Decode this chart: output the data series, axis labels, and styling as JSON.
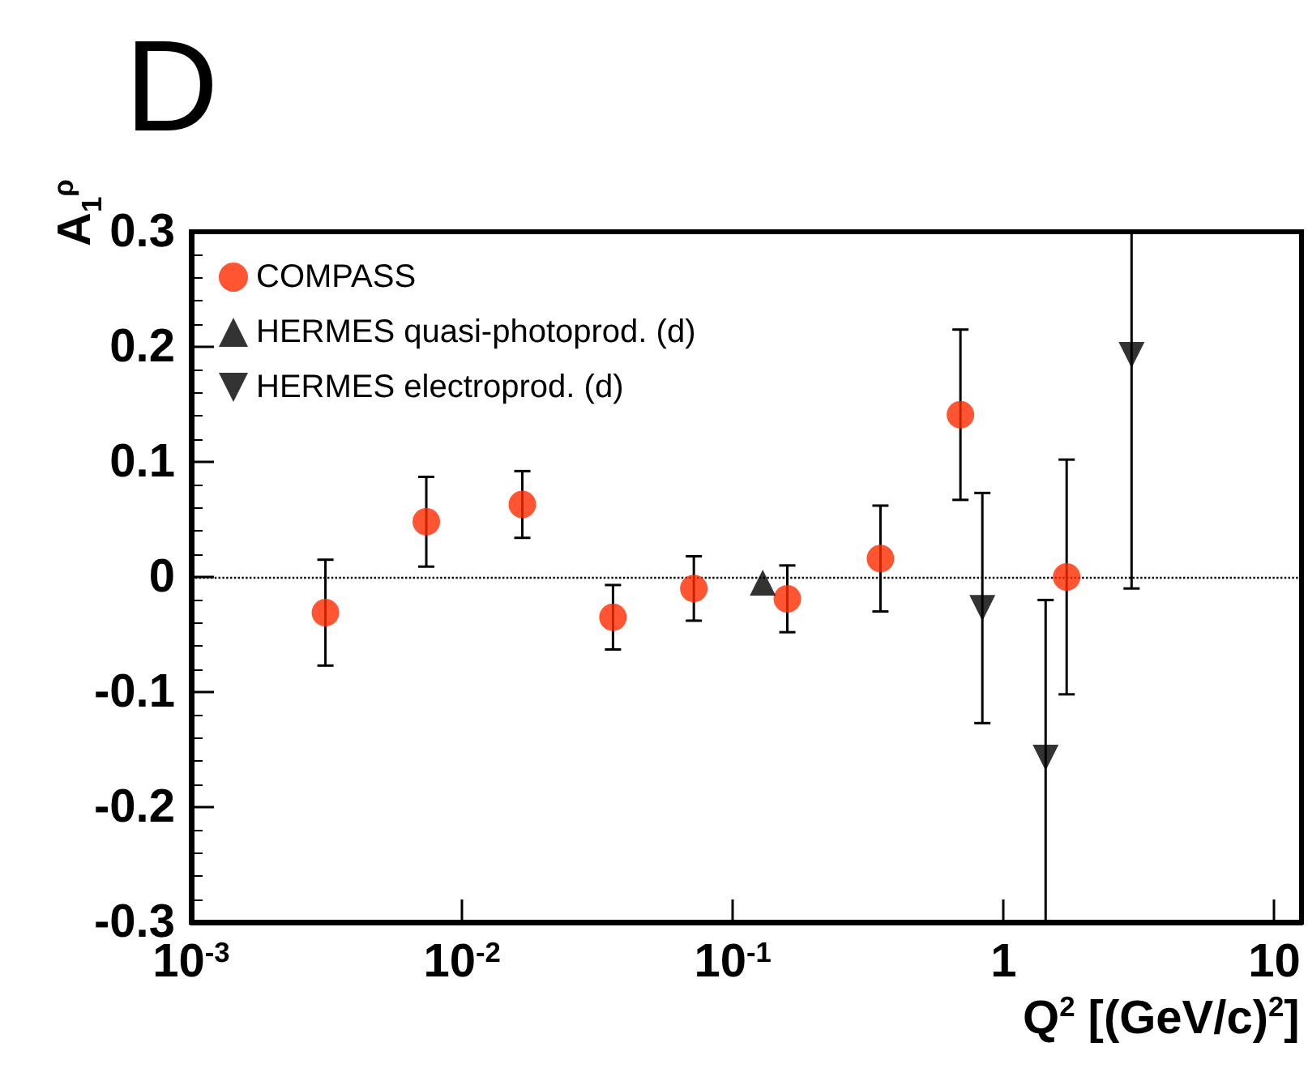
{
  "chart_data": {
    "type": "scatter",
    "title": "D",
    "xlabel": "Q$^{2}$ [(GeV/c)$^{2}$]",
    "ylabel": "A$_{1}$$^{ρ}$",
    "log": "x",
    "grid": false,
    "legend": "top left",
    "xlim": [
      0.001,
      12.6
    ],
    "xticks": [
      {
        "value": 0.001,
        "label": "10$^{-3}$"
      },
      {
        "value": 0.01,
        "label": "10$^{-2}$"
      },
      {
        "value": 0.1,
        "label": "10$^{-1}$"
      },
      1,
      10
    ],
    "ylim": [
      -0.3,
      0.3
    ],
    "yticks": [
      -0.3,
      -0.2,
      -0.1,
      0,
      0.1,
      0.2,
      0.3
    ],
    "ref_lines": [
      {
        "axis": "y",
        "value": 0,
        "line_style": "dotted",
        "color": "#000000"
      }
    ],
    "series": [
      {
        "name": "COMPASS",
        "color": "#ff2a00",
        "marker": "circle",
        "x": [
          0.00313,
          0.00738,
          0.0167,
          0.0361,
          0.0718,
          0.159,
          0.351,
          0.693,
          1.71
        ],
        "values": [
          -0.031,
          0.048,
          0.063,
          -0.035,
          -0.01,
          -0.019,
          0.016,
          0.141,
          0.0
        ],
        "errors": [
          0.046,
          0.039,
          0.029,
          0.028,
          0.028,
          0.029,
          0.046,
          0.074,
          0.102
        ]
      },
      {
        "name": "HERMES quasi-photoprod. (d)",
        "color": "#000000",
        "marker": "triangle",
        "x": [
          0.129
        ],
        "values": [
          -0.005
        ]
      },
      {
        "name": "HERMES electroprod. (d)",
        "color": "#000000",
        "marker": "triangle-down",
        "x": [
          0.835,
          1.43,
          2.97
        ],
        "values": [
          -0.027,
          -0.157,
          0.193
        ],
        "errors": [
          0.1,
          [
            -0.3,
            -0.02
          ],
          [
            -0.01,
            0.3
          ]
        ]
      }
    ]
  }
}
